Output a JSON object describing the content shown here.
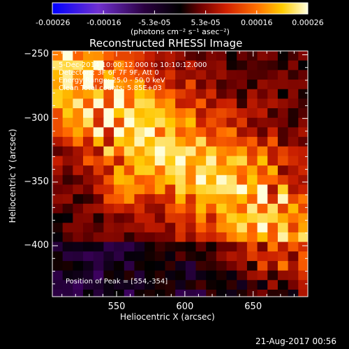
{
  "chart_data": {
    "type": "heatmap",
    "title": "Reconstructed RHESSI Image",
    "xlabel": "Heliocentric X (arcsec)",
    "ylabel": "Heliocentric Y (arcsec)",
    "xlim": [
      503,
      690
    ],
    "ylim": [
      -440,
      -247
    ],
    "x_ticks": [
      550,
      600,
      650
    ],
    "y_ticks": [
      -250,
      -300,
      -350,
      -400
    ],
    "colorbar": {
      "ticks": [
        "-0.00026",
        "-0.00016",
        "-5.3e-05",
        "5.3e-05",
        "0.00016",
        "0.00026"
      ],
      "range": [
        -0.00026,
        0.00026
      ],
      "units": "(photons cm⁻² s⁻¹ asec⁻²)",
      "colormap": [
        "#0000ff",
        "#6a2cc8",
        "#3a005a",
        "#000000",
        "#6e0000",
        "#c81e00",
        "#ff6400",
        "#ffc800",
        "#ffffdc"
      ]
    },
    "annotations": [
      "5-Dec-2014 10:00:12.000 to 10:10:12.000",
      "Detectors: 3F 6F 7F 9F, Att 0",
      "Energy Range: 25.0 - 50.0 keV",
      "Clean     Total counts: 5.85E+03"
    ],
    "peak_label": "Position of Peak = [554,-354]",
    "peak": [
      554,
      -354
    ],
    "grid": false
  },
  "footer": {
    "timestamp": "21-Aug-2017 00:56"
  }
}
